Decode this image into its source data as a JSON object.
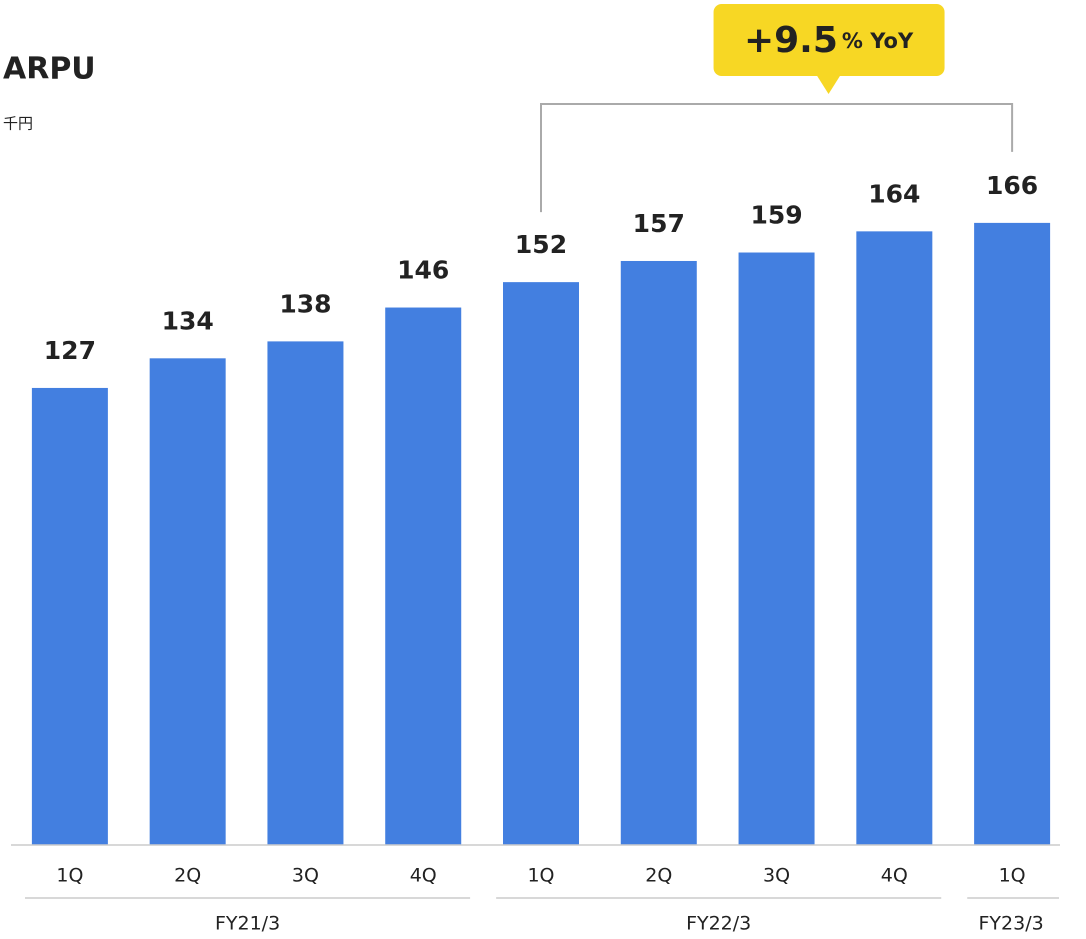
{
  "chart_data": {
    "type": "bar",
    "title": "ARPU",
    "subtitle": "千円",
    "groups": [
      {
        "name": "FY21/3",
        "categories": [
          "1Q",
          "2Q",
          "3Q",
          "4Q"
        ]
      },
      {
        "name": "FY22/3",
        "categories": [
          "1Q",
          "2Q",
          "3Q",
          "4Q"
        ]
      },
      {
        "name": "FY23/3",
        "categories": [
          "1Q"
        ]
      }
    ],
    "values": [
      127,
      134,
      138,
      146,
      152,
      157,
      159,
      164,
      166
    ],
    "color": "#437fe0",
    "ylim": [
      19,
      200
    ],
    "annotation": {
      "main": "+9.5",
      "unit": "% YoY"
    },
    "annotation_color": "#f7d724"
  }
}
